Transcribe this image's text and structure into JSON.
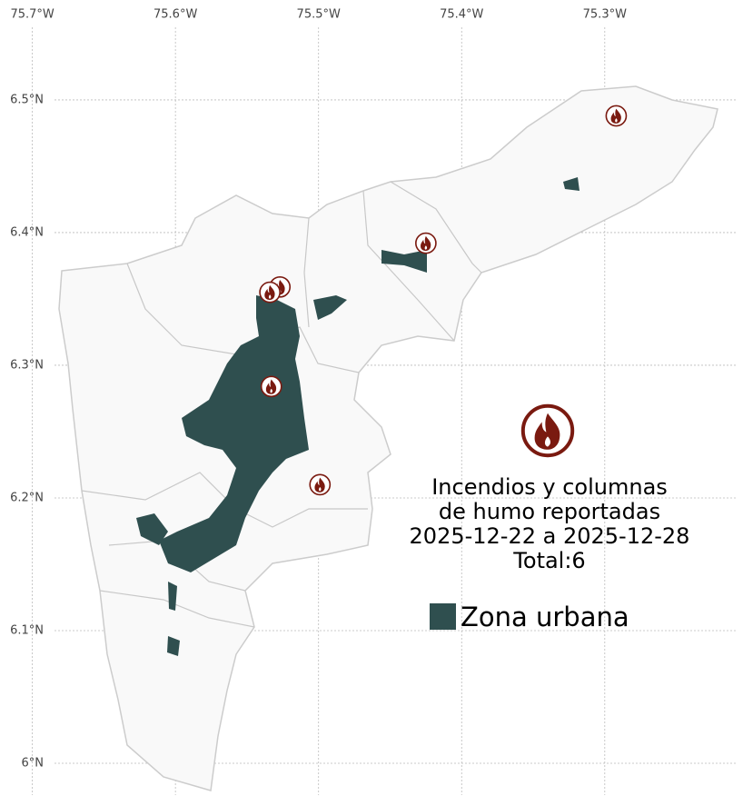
{
  "map": {
    "xlim": [
      -75.7226,
      -75.2034
    ],
    "ylim": [
      5.9678,
      6.5753
    ],
    "xticks": [
      {
        "value": -75.7,
        "label": "75.7°W"
      },
      {
        "value": -75.6,
        "label": "75.6°W"
      },
      {
        "value": -75.5,
        "label": "75.5°W"
      },
      {
        "value": -75.4,
        "label": "75.4°W"
      },
      {
        "value": -75.3,
        "label": "75.3°W"
      }
    ],
    "yticks": [
      {
        "value": 6.5,
        "label": "6.5°N"
      },
      {
        "value": 6.4,
        "label": "6.4°N"
      },
      {
        "value": 6.3,
        "label": "6.3°N"
      },
      {
        "value": 6.2,
        "label": "6.2°N"
      },
      {
        "value": 6.1,
        "label": "6.1°N"
      },
      {
        "value": 6,
        "label": "6°N"
      }
    ],
    "grid": true,
    "title_lines": [
      "Incendios y columnas",
      "de humo reportadas",
      "2025-12-22 a 2025-12-28",
      "Total:6"
    ],
    "legend": {
      "label": "Zona urbana",
      "color": "#2f4f4f"
    },
    "fire_color": "#7a1a10",
    "fires": [
      {
        "lon": -75.292,
        "lat": 6.488
      },
      {
        "lon": -75.425,
        "lat": 6.392
      },
      {
        "lon": -75.527,
        "lat": 6.359
      },
      {
        "lon": -75.534,
        "lat": 6.355
      },
      {
        "lon": -75.533,
        "lat": 6.284
      },
      {
        "lon": -75.499,
        "lat": 6.21
      }
    ]
  }
}
